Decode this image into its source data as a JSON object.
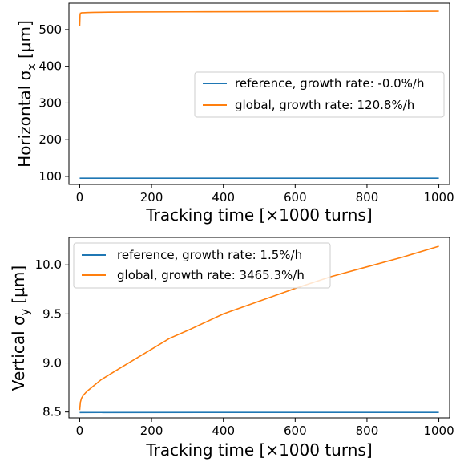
{
  "chart_data": [
    {
      "type": "line",
      "xlabel": "Tracking time [×1000 turns]",
      "ylabel": "Horizontal σ",
      "ylabel_sub": "x",
      "ylabel_unit": " [µm]",
      "xlim": [
        -30,
        1030
      ],
      "ylim": [
        78,
        572
      ],
      "xticks": [
        0,
        200,
        400,
        600,
        800,
        1000
      ],
      "yticks": [
        100,
        200,
        300,
        400,
        500
      ],
      "legend": "center-right",
      "series": [
        {
          "name": "reference, growth rate: -0.0%/h",
          "color": "#1f77b4",
          "x": [
            0,
            1000
          ],
          "y": [
            95.0,
            95.0
          ]
        },
        {
          "name": "global, growth rate: 120.8%/h",
          "color": "#ff7f0e",
          "x": [
            0,
            1,
            2,
            3,
            5,
            10,
            20,
            40,
            80,
            150,
            300,
            500,
            700,
            900,
            1000
          ],
          "y": [
            510,
            540,
            545,
            544,
            546,
            546,
            546.5,
            547,
            547.5,
            548,
            548.5,
            549,
            549.3,
            549.6,
            550
          ]
        }
      ]
    },
    {
      "type": "line",
      "xlabel": "Tracking time [×1000 turns]",
      "ylabel": "Vertical σ",
      "ylabel_sub": "y",
      "ylabel_unit": " [µm]",
      "xlim": [
        -30,
        1030
      ],
      "ylim": [
        8.44,
        10.28
      ],
      "xticks": [
        0,
        200,
        400,
        600,
        800,
        1000
      ],
      "yticks": [
        8.5,
        9.0,
        9.5,
        10.0
      ],
      "yticklabels": [
        "8.5",
        "9.0",
        "9.5",
        "10.0"
      ],
      "legend": "upper-left",
      "series": [
        {
          "name": "reference, growth rate: 1.5%/h",
          "color": "#1f77b4",
          "x": [
            0,
            1000
          ],
          "y": [
            8.495,
            8.496
          ]
        },
        {
          "name": "global, growth rate: 3465.3%/h",
          "color": "#ff7f0e",
          "x": [
            0,
            2,
            5,
            10,
            20,
            40,
            60,
            100,
            150,
            200,
            250,
            300,
            400,
            500,
            600,
            700,
            800,
            900,
            1000
          ],
          "y": [
            8.52,
            8.6,
            8.64,
            8.67,
            8.71,
            8.77,
            8.83,
            8.92,
            9.03,
            9.14,
            9.25,
            9.33,
            9.5,
            9.63,
            9.76,
            9.88,
            9.98,
            10.08,
            10.19
          ]
        }
      ]
    }
  ]
}
